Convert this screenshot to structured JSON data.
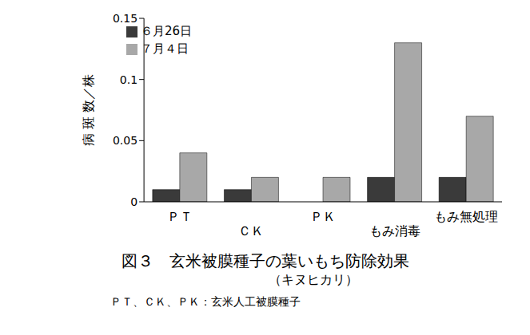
{
  "chart_data": {
    "type": "bar",
    "title": "図３　玄米被膜種子の葉いもち防除効果",
    "subtitle": "（キヌヒカリ）",
    "y_label": "病 斑 数／株",
    "annotations": [
      "ＰＴ、ＣＫ、ＰＫ：玄米人工被膜種子"
    ],
    "categories": [
      "ＰＴ",
      "ＣＫ",
      "ＰＫ",
      "もみ消毒",
      "もみ無処理"
    ],
    "series": [
      {
        "name": "６月26日",
        "color": "#3a3a3a",
        "values": [
          0.01,
          0.01,
          0,
          0.02,
          0.02
        ]
      },
      {
        "name": "７月４日",
        "color": "#a8a8a8",
        "values": [
          0.04,
          0.02,
          0.02,
          0.13,
          0.07
        ]
      }
    ],
    "ylim": [
      0,
      0.15
    ],
    "yticks": [
      0,
      0.05,
      0.1,
      0.15
    ],
    "grid": false,
    "legend": "upper left"
  }
}
